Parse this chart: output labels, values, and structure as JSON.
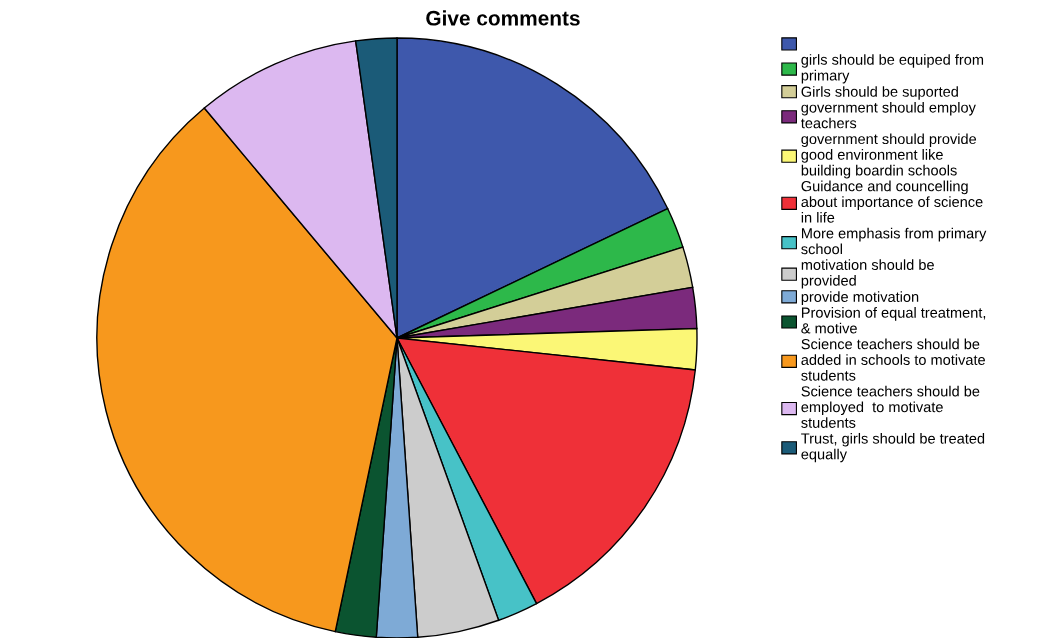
{
  "chart_data": {
    "type": "pie",
    "title": "Give comments",
    "categories": [
      null,
      "girls should be equiped from\nprimary",
      "Girls should be suported",
      "government should employ\nteachers",
      "government should provide\ngood environment like\nbuilding boardin schools",
      "Guidance and councelling\nabout importance of science\nin life",
      "More emphasis from primary\nschool",
      "motivation should be\nprovided",
      "provide motivation",
      "Provision of equal treatment,\n& motive",
      "Science teachers should be\nadded in schools to motivate\nstudents",
      "Science teachers should be\nemployed  to motivate\nstudents",
      "Trust, girls should be treated\nequally"
    ],
    "values": [
      17.9,
      2.2,
      2.2,
      2.2,
      2.2,
      15.6,
      2.2,
      4.4,
      2.2,
      2.2,
      35.6,
      8.9,
      2.2
    ],
    "colors": [
      "#3e58ac",
      "#2db84a",
      "#d3ce98",
      "#7b2a7c",
      "#fbf776",
      "#ef3038",
      "#47c2c7",
      "#cccccc",
      "#7eaad6",
      "#0b5430",
      "#f7981d",
      "#dcb8f0",
      "#1b5b78"
    ],
    "legend": "right"
  }
}
